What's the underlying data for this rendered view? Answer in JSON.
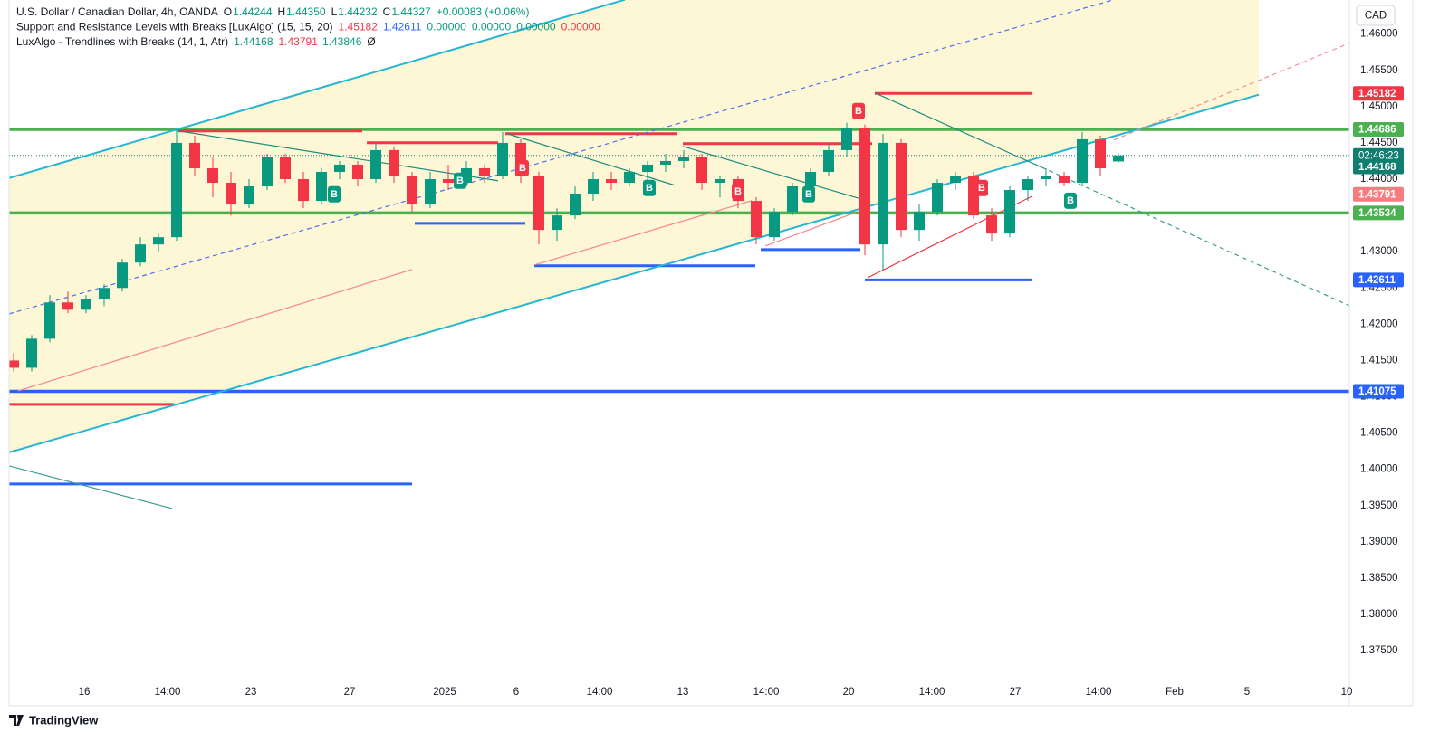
{
  "chart_data": {
    "type": "candlestick",
    "legend": [
      {
        "title": "U.S. Dollar / Canadian Dollar, 4h, OANDA",
        "items": [
          {
            "key": "O",
            "value": "1.44244",
            "color": "#089981"
          },
          {
            "key": "H",
            "value": "1.44350",
            "color": "#089981"
          },
          {
            "key": "L",
            "value": "1.44232",
            "color": "#089981"
          },
          {
            "key": "C",
            "value": "1.44327",
            "color": "#089981"
          },
          {
            "value": "+0.00083 (+0.06%)",
            "color": "#089981"
          }
        ]
      },
      {
        "title": "Support and Resistance Levels with Breaks [LuxAlgo] (15, 15, 20)",
        "items": [
          {
            "value": "1.45182",
            "color": "#f23645"
          },
          {
            "value": "1.42611",
            "color": "#2962ff"
          },
          {
            "value": "0.00000",
            "color": "#089981"
          },
          {
            "value": "0.00000",
            "color": "#089981"
          },
          {
            "value": "0.00000",
            "color": "#089981"
          },
          {
            "value": "0.00000",
            "color": "#f23645"
          }
        ]
      },
      {
        "title": "LuxAlgo - Trendlines with Breaks (14, 1, Atr)",
        "items": [
          {
            "value": "1.44168",
            "color": "#089981"
          },
          {
            "value": "1.43791",
            "color": "#f23645"
          },
          {
            "value": "1.43846",
            "color": "#089981"
          },
          {
            "value": "Ø",
            "color": "#131722"
          }
        ]
      }
    ],
    "currency": "CAD",
    "brand": "TradingView",
    "up_color": "#089981",
    "down_color": "#f23645",
    "channel_fill": "#fdf7d6",
    "xlim": [
      0,
      148
    ],
    "ylim": [
      1.3674,
      1.4647
    ],
    "xticks": [
      {
        "value": 8.3,
        "label": "16"
      },
      {
        "value": 17.5,
        "label": "14:00"
      },
      {
        "value": 26.7,
        "label": "23"
      },
      {
        "value": 37.6,
        "label": "27"
      },
      {
        "value": 48.1,
        "label": "2025"
      },
      {
        "value": 56,
        "label": "6"
      },
      {
        "value": 65.2,
        "label": "14:00"
      },
      {
        "value": 74.4,
        "label": "13"
      },
      {
        "value": 83.6,
        "label": "14:00"
      },
      {
        "value": 92.7,
        "label": "20"
      },
      {
        "value": 101.9,
        "label": "14:00"
      },
      {
        "value": 111.1,
        "label": "27"
      },
      {
        "value": 120.3,
        "label": "14:00"
      },
      {
        "value": 128.7,
        "label": "Feb"
      },
      {
        "value": 136.7,
        "label": "5"
      },
      {
        "value": 147.7,
        "label": "10"
      }
    ],
    "yticks": [
      {
        "value": 1.46,
        "label": "1.46000"
      },
      {
        "value": 1.455,
        "label": "1.45500"
      },
      {
        "value": 1.45,
        "label": "1.45000"
      },
      {
        "value": 1.445,
        "label": "1.44500"
      },
      {
        "value": 1.44,
        "label": "1.44000"
      },
      {
        "value": 1.435,
        "label": "1.43500"
      },
      {
        "value": 1.43,
        "label": "1.43000"
      },
      {
        "value": 1.425,
        "label": "1.42500"
      },
      {
        "value": 1.42,
        "label": "1.42000"
      },
      {
        "value": 1.415,
        "label": "1.41500"
      },
      {
        "value": 1.41,
        "label": "1.41000"
      },
      {
        "value": 1.405,
        "label": "1.40500"
      },
      {
        "value": 1.4,
        "label": "1.40000"
      },
      {
        "value": 1.395,
        "label": "1.39500"
      },
      {
        "value": 1.39,
        "label": "1.39000"
      },
      {
        "value": 1.385,
        "label": "1.38500"
      },
      {
        "value": 1.38,
        "label": "1.38000"
      },
      {
        "value": 1.375,
        "label": "1.37500"
      }
    ],
    "x": [
      0.5,
      2.5,
      4.5,
      6.5,
      8.5,
      10.5,
      12.5,
      14.5,
      16.5,
      18.5,
      20.5,
      22.5,
      24.5,
      26.5,
      28.5,
      30.5,
      32.5,
      34.5,
      36.5,
      38.5,
      40.5,
      42.5,
      44.5,
      46.5,
      48.5,
      50.5,
      52.5,
      54.5,
      56.5,
      58.5,
      60.5,
      62.5,
      64.5,
      66.5,
      68.5,
      70.5,
      72.5,
      74.5,
      76.5,
      78.5,
      80.5,
      82.5,
      84.5,
      86.5,
      88.5,
      90.5,
      92.5,
      94.5,
      96.5,
      98.5,
      100.5,
      102.5,
      104.5,
      106.5,
      108.5,
      110.5,
      112.5,
      114.5,
      116.5,
      118.5,
      120.5,
      122.5
    ],
    "open": [
      1.415,
      1.414,
      1.418,
      1.423,
      1.422,
      1.4235,
      1.425,
      1.4285,
      1.431,
      1.432,
      1.445,
      1.4415,
      1.4395,
      1.4365,
      1.439,
      1.443,
      1.44,
      1.437,
      1.441,
      1.442,
      1.44,
      1.444,
      1.4405,
      1.4365,
      1.44,
      1.4395,
      1.4415,
      1.4405,
      1.445,
      1.4405,
      1.433,
      1.435,
      1.438,
      1.44,
      1.4395,
      1.441,
      1.442,
      1.4425,
      1.443,
      1.4395,
      1.44,
      1.437,
      1.432,
      1.4355,
      1.439,
      1.441,
      1.444,
      1.447,
      1.431,
      1.445,
      1.433,
      1.4355,
      1.4395,
      1.4405,
      1.435,
      1.4325,
      1.4385,
      1.44,
      1.4405,
      1.4395,
      1.4455,
      1.44244
    ],
    "high": [
      1.416,
      1.4185,
      1.424,
      1.4245,
      1.424,
      1.4255,
      1.429,
      1.432,
      1.4325,
      1.4468,
      1.446,
      1.443,
      1.441,
      1.44,
      1.4435,
      1.4435,
      1.441,
      1.4415,
      1.4425,
      1.4425,
      1.445,
      1.4445,
      1.441,
      1.441,
      1.442,
      1.4425,
      1.442,
      1.4465,
      1.4455,
      1.441,
      1.436,
      1.439,
      1.441,
      1.441,
      1.4415,
      1.4425,
      1.4435,
      1.444,
      1.4435,
      1.4405,
      1.4405,
      1.4375,
      1.436,
      1.4395,
      1.4415,
      1.445,
      1.4478,
      1.4475,
      1.4462,
      1.4455,
      1.4365,
      1.44,
      1.441,
      1.441,
      1.436,
      1.439,
      1.4405,
      1.4415,
      1.441,
      1.4465,
      1.446,
      1.4435
    ],
    "low": [
      1.4135,
      1.4135,
      1.4175,
      1.4215,
      1.4215,
      1.4225,
      1.4245,
      1.428,
      1.43,
      1.4315,
      1.4405,
      1.4375,
      1.435,
      1.436,
      1.4385,
      1.4395,
      1.436,
      1.4365,
      1.44,
      1.439,
      1.4395,
      1.4395,
      1.4355,
      1.436,
      1.4385,
      1.439,
      1.4395,
      1.44,
      1.4395,
      1.431,
      1.4315,
      1.4345,
      1.437,
      1.4385,
      1.439,
      1.4395,
      1.441,
      1.4415,
      1.4385,
      1.4375,
      1.436,
      1.431,
      1.4315,
      1.435,
      1.4385,
      1.4405,
      1.443,
      1.4295,
      1.4275,
      1.432,
      1.4315,
      1.435,
      1.4385,
      1.4345,
      1.4315,
      1.432,
      1.437,
      1.439,
      1.439,
      1.439,
      1.4405,
      1.44232
    ],
    "close": [
      1.414,
      1.418,
      1.423,
      1.422,
      1.4235,
      1.425,
      1.4285,
      1.431,
      1.432,
      1.445,
      1.4415,
      1.4395,
      1.4365,
      1.439,
      1.443,
      1.44,
      1.437,
      1.441,
      1.442,
      1.44,
      1.444,
      1.4405,
      1.4365,
      1.44,
      1.4395,
      1.4415,
      1.4405,
      1.445,
      1.4405,
      1.433,
      1.435,
      1.438,
      1.44,
      1.4395,
      1.441,
      1.442,
      1.4425,
      1.443,
      1.4395,
      1.44,
      1.437,
      1.432,
      1.4355,
      1.439,
      1.441,
      1.444,
      1.447,
      1.431,
      1.445,
      1.433,
      1.4355,
      1.4395,
      1.4405,
      1.435,
      1.4325,
      1.4385,
      1.44,
      1.4405,
      1.4395,
      1.4455,
      1.4415,
      1.44327
    ],
    "levels": [
      {
        "value": 1.44686,
        "color": "#4caf50"
      },
      {
        "value": 1.43534,
        "color": "#4caf50"
      },
      {
        "value": 1.41075,
        "color": "#2962ff"
      }
    ],
    "sr_lines": [
      {
        "x": [
          0,
          18.2
        ],
        "value": 1.40895,
        "color": "#f23645"
      },
      {
        "x": [
          18.7,
          39
        ],
        "value": 1.44664,
        "color": "#f23645"
      },
      {
        "x": [
          39.5,
          54
        ],
        "value": 1.44502,
        "color": "#f23645"
      },
      {
        "x": [
          54.8,
          73.8
        ],
        "value": 1.44627,
        "color": "#f23645"
      },
      {
        "x": [
          74.4,
          95.3
        ],
        "value": 1.4449,
        "color": "#f23645"
      },
      {
        "x": [
          95.6,
          112.9
        ],
        "value": 1.45182,
        "color": "#f23645"
      },
      {
        "x": [
          0,
          44.5
        ],
        "value": 1.39797,
        "color": "#2962ff"
      },
      {
        "x": [
          44.8,
          57
        ],
        "value": 1.43391,
        "color": "#2962ff"
      },
      {
        "x": [
          58,
          82.4
        ],
        "value": 1.42805,
        "color": "#2962ff"
      },
      {
        "x": [
          83,
          94
        ],
        "value": 1.43029,
        "color": "#2962ff"
      },
      {
        "x": [
          94.5,
          112.9
        ],
        "value": 1.42611,
        "color": "#2962ff"
      }
    ],
    "channel": [
      {
        "x": [
          0,
          68
        ],
        "y": [
          1.44015,
          1.46474
        ],
        "color": "#26b5d3"
      },
      {
        "x": [
          0,
          138
        ],
        "y": [
          1.40234,
          1.45164
        ],
        "color": "#26b5d3"
      }
    ],
    "trendlines": [
      {
        "x": [
          0,
          122
        ],
        "y": [
          1.42143,
          1.46474
        ],
        "color": "#4f6ef2",
        "dashed": true
      },
      {
        "x": [
          122,
          148
        ],
        "y": [
          1.4454,
          1.45875
        ],
        "color": "#f48c90",
        "dashed": true
      },
      {
        "x": [
          1,
          44.5
        ],
        "y": [
          1.41082,
          1.42755
        ],
        "color": "#f7868a",
        "dashed": false
      },
      {
        "x": [
          58,
          82
        ],
        "y": [
          1.42817,
          1.43703
        ],
        "color": "#f7868a",
        "dashed": false
      },
      {
        "x": [
          83.5,
          93.5
        ],
        "y": [
          1.43079,
          1.43541
        ],
        "color": "#f7868a",
        "dashed": false
      },
      {
        "x": [
          94.8,
          113
        ],
        "y": [
          1.42642,
          1.43766
        ],
        "color": "#f23645",
        "dashed": false
      },
      {
        "x": [
          18.7,
          54
        ],
        "y": [
          1.44664,
          1.43978
        ],
        "color": "#1e8c80",
        "dashed": false
      },
      {
        "x": [
          55,
          73.5
        ],
        "y": [
          1.44627,
          1.43916
        ],
        "color": "#1e8c80",
        "dashed": false
      },
      {
        "x": [
          74.4,
          94
        ],
        "y": [
          1.44452,
          1.43729
        ],
        "color": "#1e8c80",
        "dashed": false
      },
      {
        "x": [
          95.6,
          114
        ],
        "y": [
          1.45189,
          1.44165
        ],
        "color": "#1e8c80",
        "dashed": false
      },
      {
        "x": [
          0,
          18
        ],
        "y": [
          1.40047,
          1.3946
        ],
        "color": "#3a9c92",
        "dashed": false
      },
      {
        "x": [
          114,
          148
        ],
        "y": [
          1.44165,
          1.42256
        ],
        "color": "#3a9c92",
        "dashed": true
      }
    ],
    "markers": [
      {
        "x": 35.9,
        "value": 1.43791,
        "label": "B",
        "color": "#089981"
      },
      {
        "x": 49.8,
        "value": 1.43978,
        "label": "B",
        "color": "#089981"
      },
      {
        "x": 70.7,
        "value": 1.43878,
        "label": "B",
        "color": "#089981"
      },
      {
        "x": 88.3,
        "value": 1.43791,
        "label": "B",
        "color": "#089981"
      },
      {
        "x": 117.2,
        "value": 1.43703,
        "label": "B",
        "color": "#089981"
      },
      {
        "x": 56.7,
        "value": 1.44153,
        "label": "B",
        "color": "#f23645"
      },
      {
        "x": 80.5,
        "value": 1.43828,
        "label": "B",
        "color": "#f23645"
      },
      {
        "x": 93.8,
        "value": 1.44939,
        "label": "B",
        "color": "#f23645"
      },
      {
        "x": 107.4,
        "value": 1.43878,
        "label": "B",
        "color": "#f23645"
      }
    ],
    "last_price": 1.44327,
    "last_color": "#0f7d6f",
    "countdown": "02:46:23",
    "price_tags": [
      {
        "value": 1.45182,
        "color": "#f23645"
      },
      {
        "value": 1.44686,
        "color": "#4caf50"
      },
      {
        "value": 1.44168,
        "color": "#0f7d6f"
      },
      {
        "value": 1.43791,
        "color": "#f77c80"
      },
      {
        "value": 1.43534,
        "color": "#4caf50"
      },
      {
        "value": 1.42611,
        "color": "#2962ff"
      },
      {
        "value": 1.41075,
        "color": "#2962ff"
      }
    ]
  }
}
